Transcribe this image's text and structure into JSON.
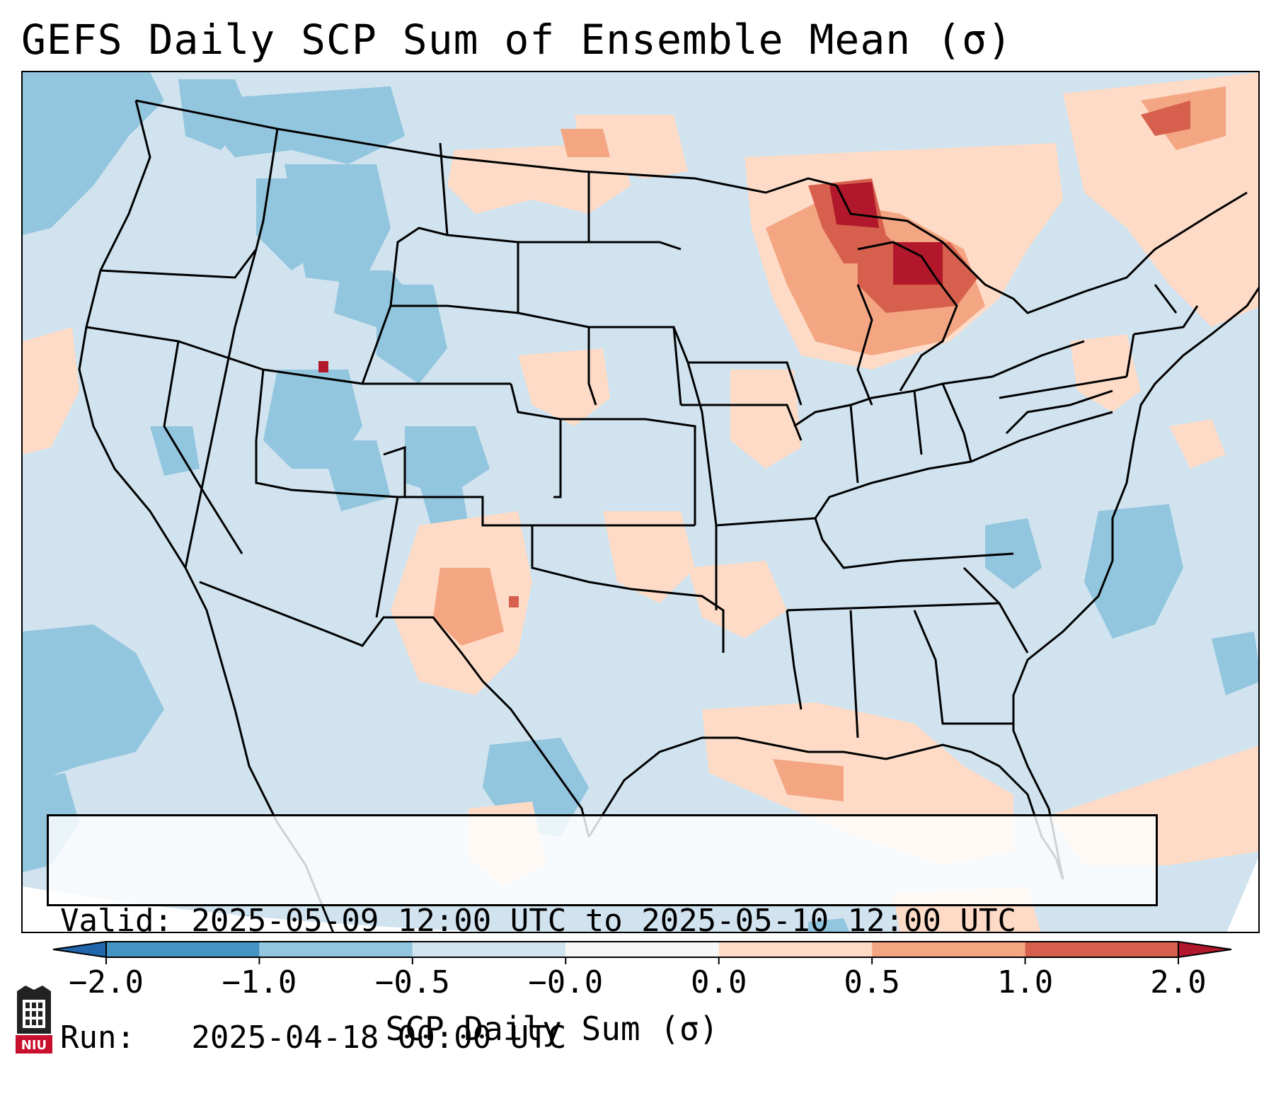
{
  "title": "GEFS Daily SCP Sum of Ensemble Mean (σ)",
  "info": {
    "valid_line": "Valid: 2025-05-09 12:00 UTC to 2025-05-10 12:00 UTC",
    "run_line": "Run:   2025-04-18 00:00 UTC"
  },
  "colorbar": {
    "label": "SCP Daily Sum (σ)",
    "ticks": [
      "−2.0",
      "−1.0",
      "−0.5",
      "−0.0",
      "0.0",
      "0.5",
      "1.0",
      "2.0"
    ],
    "bin_colors": [
      "#4393c3",
      "#92c5de",
      "#d1e5f0",
      "#f7f7f7",
      "#fddbc7",
      "#f4a582",
      "#d6604d"
    ],
    "under_color": "#2166ac",
    "over_color": "#b2182b"
  },
  "logo": {
    "text": "NIU",
    "color": "#c8102e"
  }
}
